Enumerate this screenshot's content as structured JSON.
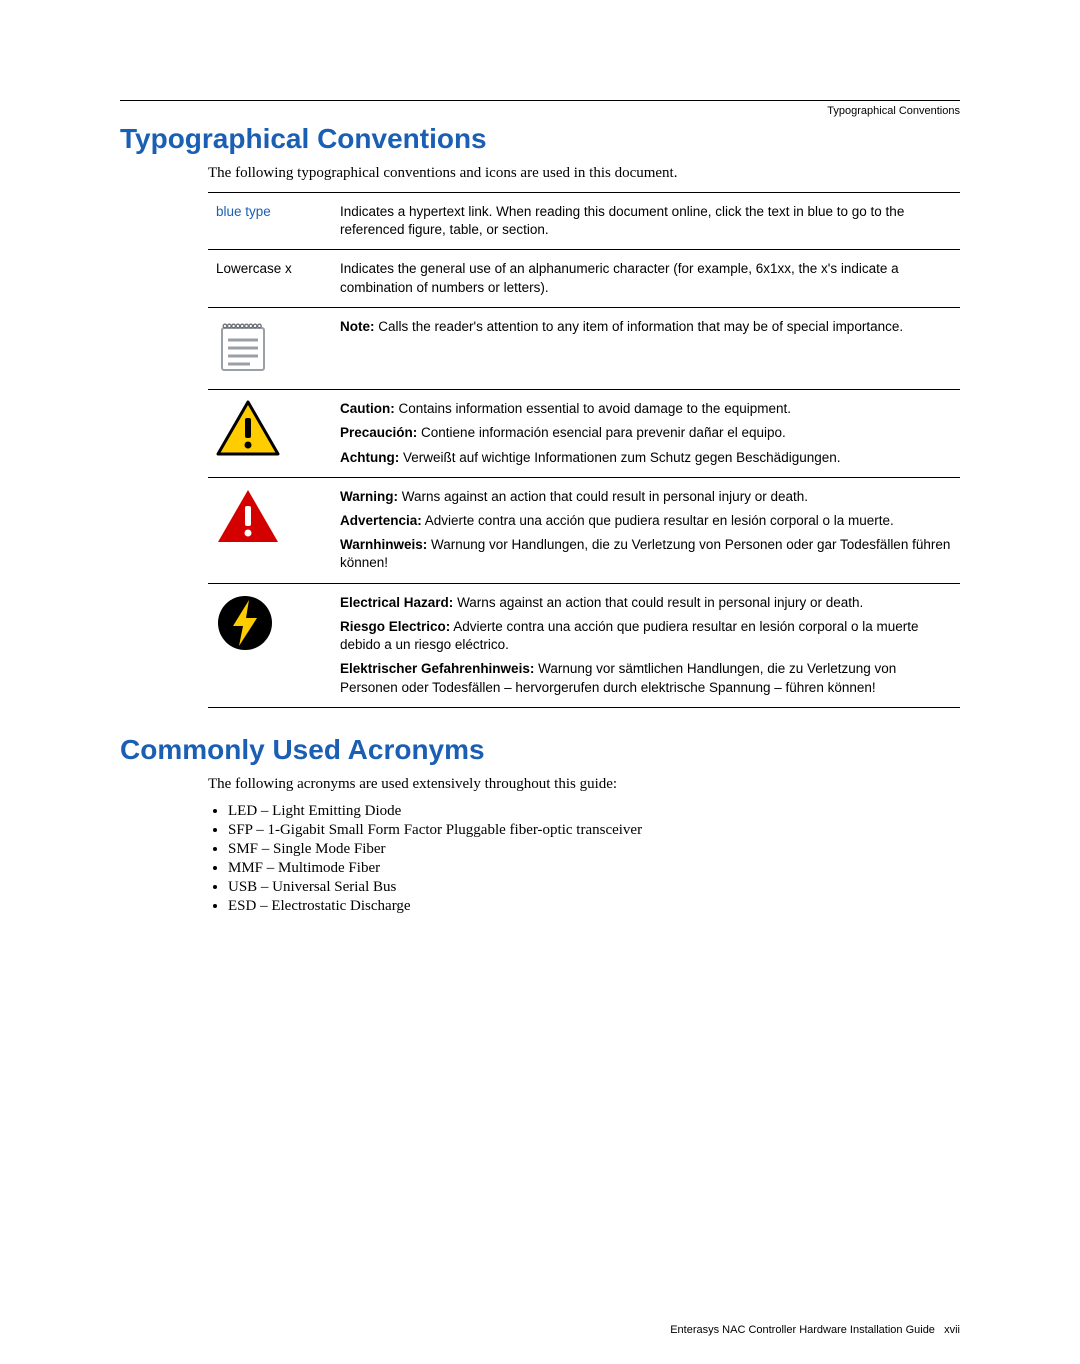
{
  "colors": {
    "heading": "#1a5fb4",
    "link": "#1a5fb4",
    "text": "#000000",
    "rule": "#000000",
    "caution_fill": "#ffcc00",
    "caution_stroke": "#000000",
    "warning_fill": "#d40000",
    "bolt_circle_fill": "#000000",
    "bolt_inner": "#ffcc00",
    "note_fill": "#9aa0a6",
    "note_spiral": "#6b6f76"
  },
  "running_head": "Typographical Conventions",
  "section1": {
    "title": "Typographical Conventions",
    "lead": "The following typographical conventions and icons are used in this document."
  },
  "table": {
    "rows": [
      {
        "icon": null,
        "label": "blue type",
        "label_variant": "blue",
        "paras": [
          "Indicates a hypertext link. When reading this document online, click the text in blue to go to the referenced figure, table, or section."
        ]
      },
      {
        "icon": null,
        "label": "Lowercase x",
        "label_variant": "plain",
        "paras": [
          "Indicates the general use of an alphanumeric character (for example, 6x1xx, the x's indicate a combination of numbers or letters)."
        ]
      },
      {
        "icon": "note",
        "paras": [
          {
            "bold": "Note:",
            "rest": " Calls the reader's attention to any item of information that may be of special importance."
          }
        ]
      },
      {
        "icon": "caution",
        "paras": [
          {
            "bold": "Caution:",
            "rest": " Contains information essential to avoid damage to the equipment."
          },
          {
            "bold": "Precaución:",
            "rest": " Contiene información esencial  para prevenir dañar el equipo."
          },
          {
            "bold": "Achtung:",
            "rest": " Verweißt auf wichtige Informationen zum Schutz gegen Beschädigungen."
          }
        ]
      },
      {
        "icon": "warning",
        "paras": [
          {
            "bold": "Warning:",
            "rest": " Warns against an action that could result in personal injury or death."
          },
          {
            "bold": "Advertencia:",
            "rest": " Advierte contra una acción que pudiera resultar en lesión corporal o la muerte."
          },
          {
            "bold": "Warnhinweis:",
            "rest": " Warnung vor Handlungen, die zu Verletzung von Personen oder gar Todesfällen führen können!"
          }
        ]
      },
      {
        "icon": "electrical",
        "paras": [
          {
            "bold": "Electrical Hazard:",
            "rest": " Warns against an action that could result in personal injury or death."
          },
          {
            "bold": "Riesgo Electrico:",
            "rest": " Advierte contra una acción que pudiera resultar en lesión corporal o la muerte debido a un riesgo eléctrico."
          },
          {
            "bold": "Elektrischer Gefahrenhinweis:",
            "rest": " Warnung vor sämtlichen Handlungen, die zu Verletzung von Personen oder Todesfällen – hervorgerufen durch elektrische Spannung – führen können!"
          }
        ]
      }
    ]
  },
  "section2": {
    "title": "Commonly Used Acronyms",
    "lead": "The following acronyms are used extensively throughout this guide:",
    "items": [
      "LED – Light Emitting Diode",
      "SFP – 1-Gigabit Small Form Factor Pluggable fiber-optic transceiver",
      "SMF – Single Mode Fiber",
      "MMF – Multimode Fiber",
      "USB – Universal Serial Bus",
      "ESD – Electrostatic Discharge"
    ]
  },
  "footer": {
    "text": "Enterasys NAC Controller Hardware Installation Guide",
    "page": "xvii"
  }
}
